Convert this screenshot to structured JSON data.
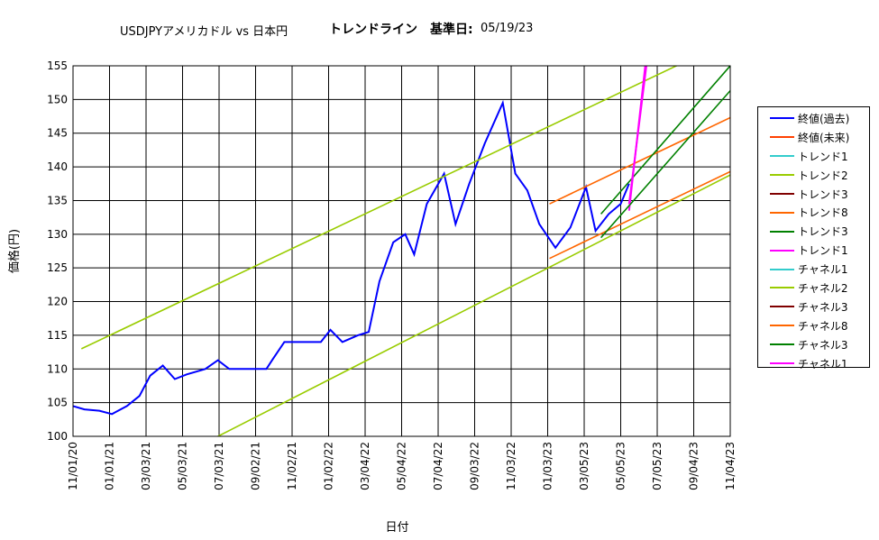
{
  "header": {
    "title_main": "USDJPYアメリカドル vs 日本円",
    "title_trend": "トレンドライン　基準日:",
    "base_date": "05/19/23"
  },
  "chart_data": {
    "type": "line",
    "xlabel": "日付",
    "ylabel": "価格(円)",
    "ylim": [
      100,
      155
    ],
    "yticks": [
      100,
      105,
      110,
      115,
      120,
      125,
      130,
      135,
      140,
      145,
      150,
      155
    ],
    "xlim": [
      "2020-11-01",
      "2023-11-04"
    ],
    "xtick_labels": [
      "11/01/20",
      "01/01/21",
      "03/03/21",
      "05/03/21",
      "07/03/21",
      "09/02/21",
      "11/02/21",
      "01/02/22",
      "03/04/22",
      "05/04/22",
      "07/04/22",
      "09/03/22",
      "11/03/22",
      "01/03/23",
      "03/05/23",
      "05/05/23",
      "07/05/23",
      "09/04/23",
      "11/04/23"
    ],
    "grid": true,
    "legend_position": "right",
    "series": [
      {
        "name": "終値(過去)",
        "color": "#0000ff",
        "x": [
          "2020-11-01",
          "2020-11-20",
          "2020-12-15",
          "2021-01-05",
          "2021-01-30",
          "2021-02-20",
          "2021-03-10",
          "2021-03-31",
          "2021-04-20",
          "2021-05-10",
          "2021-06-10",
          "2021-07-01",
          "2021-07-20",
          "2021-08-20",
          "2021-09-20",
          "2021-10-01",
          "2021-10-20",
          "2021-11-20",
          "2021-12-20",
          "2022-01-05",
          "2022-01-25",
          "2022-02-20",
          "2022-03-10",
          "2022-03-28",
          "2022-04-20",
          "2022-05-10",
          "2022-05-25",
          "2022-06-15",
          "2022-07-14",
          "2022-08-02",
          "2022-08-25",
          "2022-09-20",
          "2022-10-20",
          "2022-11-10",
          "2022-11-30",
          "2022-12-20",
          "2023-01-16",
          "2023-02-10",
          "2023-03-08",
          "2023-03-24",
          "2023-04-15",
          "2023-05-05",
          "2023-05-19"
        ],
        "values": [
          104.5,
          104.0,
          103.8,
          103.3,
          104.5,
          106.0,
          109.0,
          110.5,
          108.5,
          109.2,
          110.0,
          111.3,
          110.0,
          110.0,
          110.0,
          111.5,
          114.0,
          114.0,
          114.0,
          115.8,
          114.0,
          115.0,
          115.5,
          123.0,
          128.8,
          130.0,
          127.0,
          134.5,
          139.0,
          131.5,
          137.5,
          143.5,
          149.5,
          139.0,
          136.5,
          131.5,
          128.0,
          131.0,
          137.0,
          130.5,
          133.0,
          134.5,
          137.5
        ]
      },
      {
        "name": "終値(未来)",
        "color": "#ff4000",
        "x": [],
        "values": []
      },
      {
        "name": "トレンド1",
        "color": "#33cccc",
        "x": [],
        "values": []
      },
      {
        "name": "トレンド2",
        "color": "#99cc00",
        "x": [
          "2020-11-15",
          "2023-11-04"
        ],
        "values": [
          113.0,
          158.8
        ]
      },
      {
        "name": "トレンド3",
        "color": "#800000",
        "x": [],
        "values": []
      },
      {
        "name": "トレンド8",
        "color": "#ff6600",
        "x": [
          "2023-01-06",
          "2023-11-04"
        ],
        "values": [
          134.5,
          147.3
        ]
      },
      {
        "name": "トレンド3",
        "color": "#008000",
        "x": [
          "2023-04-02",
          "2023-11-04"
        ],
        "values": [
          133.0,
          155.0
        ]
      },
      {
        "name": "トレンド1",
        "color": "#ff00ff",
        "x": [
          "2023-05-19",
          "2023-06-15"
        ],
        "values": [
          133.5,
          155.0
        ]
      },
      {
        "name": "チャネル1",
        "color": "#33cccc",
        "x": [],
        "values": []
      },
      {
        "name": "チャネル2",
        "color": "#99cc00",
        "x": [
          "2021-07-01",
          "2023-11-04"
        ],
        "values": [
          100.0,
          138.8
        ]
      },
      {
        "name": "チャネル3",
        "color": "#800000",
        "x": [],
        "values": []
      },
      {
        "name": "チャネル8",
        "color": "#ff6600",
        "x": [
          "2023-01-06",
          "2023-11-04"
        ],
        "values": [
          126.4,
          139.3
        ]
      },
      {
        "name": "チャネル3",
        "color": "#008000",
        "x": [
          "2023-04-02",
          "2023-11-04"
        ],
        "values": [
          129.5,
          151.3
        ]
      },
      {
        "name": "チャネル1",
        "color": "#ff00ff",
        "x": [
          "2023-05-19",
          "2023-06-17"
        ],
        "values": [
          134.5,
          155.0
        ]
      }
    ]
  },
  "colors": {
    "grid": "#000000",
    "plot_border": "#808080",
    "background": "#ffffff"
  }
}
